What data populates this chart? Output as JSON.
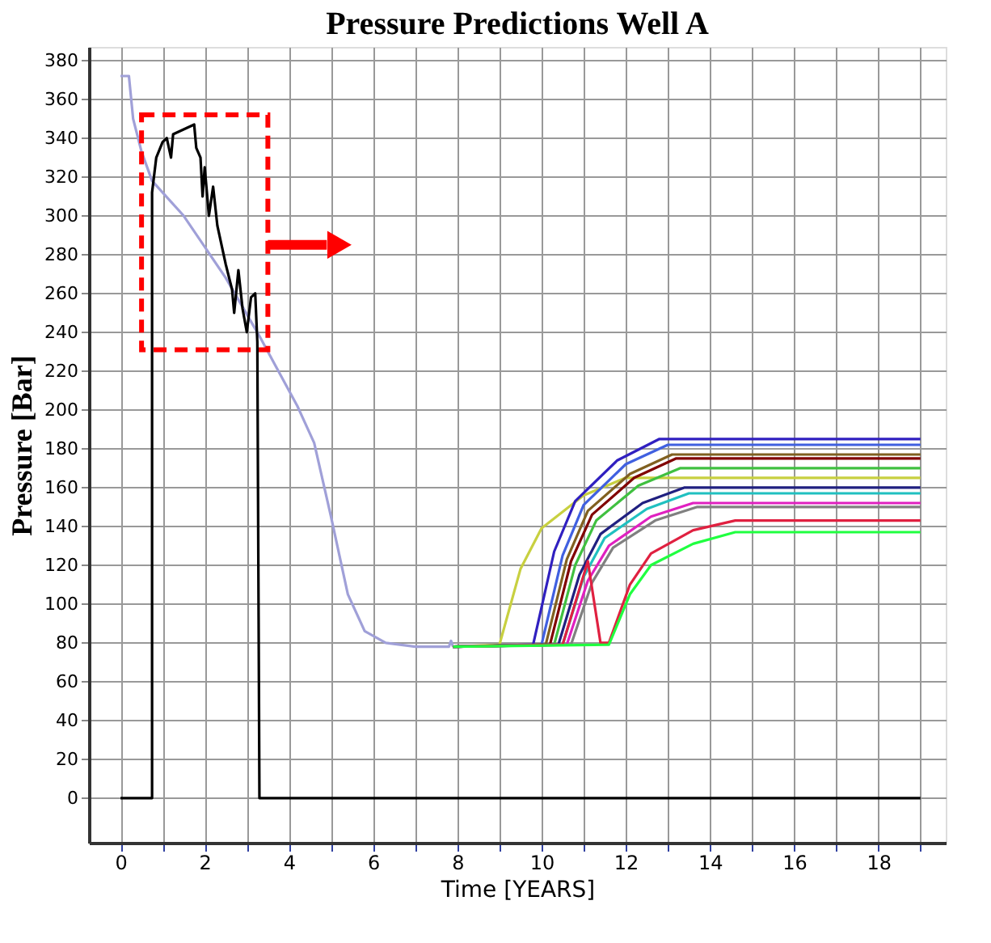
{
  "chart_data": {
    "type": "line",
    "title": "Pressure Predictions Well A",
    "xlabel": "Time [YEARS]",
    "ylabel": "Pressure [Bar]",
    "xlim": [
      -0.75,
      19.6
    ],
    "ylim": [
      -23,
      387
    ],
    "xticks": [
      0,
      {
        "value": 1,
        "label": null
      },
      2,
      {
        "value": 3,
        "label": null
      },
      4,
      {
        "value": 5,
        "label": null
      },
      6,
      {
        "value": 7,
        "label": null
      },
      8,
      {
        "value": 9,
        "label": null
      },
      10,
      {
        "value": 11,
        "label": null
      },
      12,
      {
        "value": 13,
        "label": null
      },
      14,
      {
        "value": 15,
        "label": null
      },
      16,
      {
        "value": 17,
        "label": null
      },
      18,
      {
        "value": 19,
        "label": null
      }
    ],
    "yticks": [
      0,
      20,
      40,
      60,
      80,
      100,
      120,
      140,
      160,
      180,
      200,
      220,
      240,
      260,
      280,
      300,
      320,
      340,
      360,
      380
    ],
    "grid": true,
    "legend": false,
    "marker": "none",
    "line_style": "solid",
    "series": [
      {
        "color": "#a0a0d8",
        "x": [
          0,
          0.2,
          0.3,
          0.5,
          0.75,
          1.5,
          2.5,
          3.3,
          3.7,
          4.2,
          4.6,
          5.0,
          5.4,
          5.8,
          6.3,
          7.0,
          7.8,
          7.85,
          7.9
        ],
        "values": [
          372,
          372,
          350,
          333,
          318,
          300,
          268,
          238,
          222,
          202,
          183,
          145,
          105,
          86,
          80,
          78,
          78,
          81,
          78
        ]
      },
      {
        "color": "#c8d040",
        "x": [
          7.9,
          9.0,
          9.5,
          10.0,
          11.0,
          12.0,
          19
        ],
        "values": [
          78,
          79,
          118,
          139,
          156,
          165,
          165
        ]
      },
      {
        "color": "#3020c0",
        "x": [
          7.9,
          9.8,
          10.3,
          10.8,
          11.8,
          12.8,
          19
        ],
        "values": [
          78,
          79,
          127,
          153,
          174,
          185,
          185
        ]
      },
      {
        "color": "#4060e0",
        "x": [
          7.9,
          10.0,
          10.5,
          11.0,
          12.0,
          13.0,
          19
        ],
        "values": [
          78,
          79,
          125,
          151,
          172,
          182,
          182
        ]
      },
      {
        "color": "#806020",
        "x": [
          7.9,
          10.1,
          10.6,
          11.1,
          12.1,
          13.1,
          19
        ],
        "values": [
          78,
          79,
          123,
          148,
          167,
          177,
          177
        ]
      },
      {
        "color": "#800000",
        "x": [
          7.9,
          10.2,
          10.7,
          11.2,
          12.2,
          13.2,
          19
        ],
        "values": [
          78,
          79,
          122,
          146,
          165,
          175,
          175
        ]
      },
      {
        "color": "#40c040",
        "x": [
          7.9,
          10.3,
          10.8,
          11.3,
          12.3,
          13.3,
          19
        ],
        "values": [
          78,
          79,
          120,
          143,
          161,
          170,
          170
        ]
      },
      {
        "color": "#202080",
        "x": [
          7.9,
          10.4,
          10.9,
          11.4,
          12.4,
          13.4,
          19
        ],
        "values": [
          78,
          79,
          115,
          136,
          152,
          160,
          160
        ]
      },
      {
        "color": "#20c0c0",
        "x": [
          7.9,
          10.5,
          11.0,
          11.5,
          12.5,
          13.5,
          19
        ],
        "values": [
          78,
          79,
          114,
          134,
          149,
          157,
          157
        ]
      },
      {
        "color": "#e020c0",
        "x": [
          7.9,
          10.6,
          11.1,
          11.6,
          12.6,
          13.6,
          19
        ],
        "values": [
          78,
          79,
          112,
          130,
          145,
          152,
          152
        ]
      },
      {
        "color": "#808080",
        "x": [
          7.9,
          10.7,
          11.2,
          11.7,
          12.7,
          13.7,
          19
        ],
        "values": [
          78,
          79,
          111,
          129,
          143,
          150,
          150
        ]
      },
      {
        "color": "#e02040",
        "x": [
          7.9,
          10.5,
          11.1,
          11.4,
          11.6,
          12.1,
          12.6,
          13.6,
          14.6,
          19
        ],
        "values": [
          78,
          79,
          122,
          80,
          80,
          110,
          126,
          138,
          143,
          143
        ]
      },
      {
        "color": "#20ff40",
        "x": [
          7.9,
          11.6,
          12.1,
          12.6,
          13.6,
          14.6,
          19
        ],
        "values": [
          78,
          79,
          105,
          120,
          131,
          137,
          137
        ]
      },
      {
        "color": "#000000",
        "x": [
          0,
          0.75,
          0.75,
          0.85,
          1.0,
          1.1,
          1.2,
          1.25,
          1.75,
          1.8,
          1.9,
          1.95,
          2.0,
          2.1,
          2.2,
          2.3,
          2.5,
          2.65,
          2.7,
          2.8,
          2.9,
          3.0,
          3.1,
          3.2,
          3.25,
          3.3,
          19
        ],
        "values": [
          0,
          0,
          312,
          330,
          338,
          340,
          330,
          342,
          347,
          335,
          330,
          310,
          325,
          300,
          315,
          295,
          275,
          262,
          250,
          272,
          252,
          240,
          258,
          260,
          235,
          0,
          0
        ]
      }
    ]
  }
}
